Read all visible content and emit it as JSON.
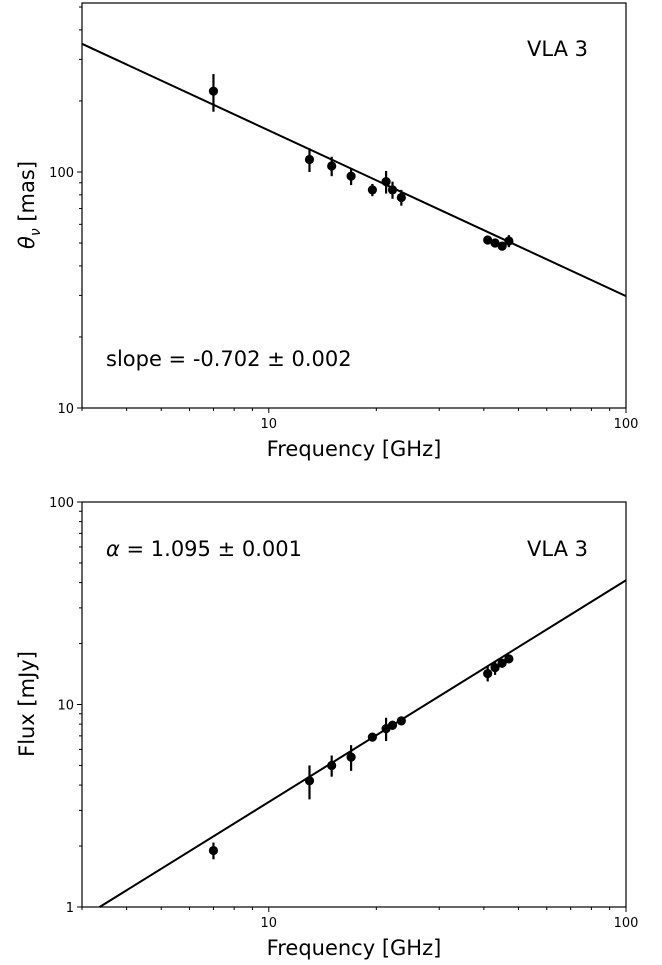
{
  "chart_data": [
    {
      "type": "scatter",
      "xlabel": "Frequency [GHz]",
      "ylabel_symbol": "θ",
      "ylabel_sub": "ν",
      "ylabel_rest": " [mas]",
      "xscale": "log",
      "yscale": "log",
      "xlim": [
        3,
        100
      ],
      "ylim": [
        10,
        520
      ],
      "xticks": [
        {
          "value": 10,
          "label": "10"
        },
        {
          "value": 100,
          "label": "100"
        }
      ],
      "yticks": [
        {
          "value": 10,
          "label": "10"
        },
        {
          "value": 100,
          "label": "100"
        }
      ],
      "source_label": "VLA 3",
      "fit_text": "slope = -0.702 ± 0.002",
      "fit": {
        "slope": -0.702,
        "ref_x": 10,
        "ref_y": 150
      },
      "points": [
        {
          "x": 7.0,
          "y": 220,
          "err": 40
        },
        {
          "x": 13.0,
          "y": 113,
          "err": 13
        },
        {
          "x": 15.0,
          "y": 106,
          "err": 10
        },
        {
          "x": 17.0,
          "y": 96,
          "err": 8
        },
        {
          "x": 19.5,
          "y": 84,
          "err": 5
        },
        {
          "x": 21.3,
          "y": 91,
          "err": 10
        },
        {
          "x": 22.2,
          "y": 84,
          "err": 7
        },
        {
          "x": 23.5,
          "y": 78,
          "err": 6
        },
        {
          "x": 41.0,
          "y": 51.5,
          "err": 2
        },
        {
          "x": 43.0,
          "y": 50,
          "err": 2
        },
        {
          "x": 45.0,
          "y": 48.5,
          "err": 2
        },
        {
          "x": 47.0,
          "y": 51,
          "err": 3
        }
      ]
    },
    {
      "type": "scatter",
      "xlabel": "Frequency [GHz]",
      "ylabel": "Flux [mJy]",
      "xscale": "log",
      "yscale": "log",
      "xlim": [
        3,
        100
      ],
      "ylim": [
        1,
        100
      ],
      "xticks": [
        {
          "value": 10,
          "label": "10"
        },
        {
          "value": 100,
          "label": "100"
        }
      ],
      "yticks": [
        {
          "value": 1,
          "label": "1"
        },
        {
          "value": 10,
          "label": "10"
        },
        {
          "value": 100,
          "label": "100"
        }
      ],
      "source_label": "VLA 3",
      "fit_text_symbol": "α",
      "fit_text_rest": " = 1.095 ± 0.001",
      "fit": {
        "slope": 1.095,
        "ref_x": 10,
        "ref_y": 3.3
      },
      "points": [
        {
          "x": 7.0,
          "y": 1.9,
          "err": 0.18
        },
        {
          "x": 13.0,
          "y": 4.2,
          "err": 0.8
        },
        {
          "x": 15.0,
          "y": 5.0,
          "err": 0.6
        },
        {
          "x": 17.0,
          "y": 5.5,
          "err": 0.8
        },
        {
          "x": 19.5,
          "y": 6.9,
          "err": 0.3
        },
        {
          "x": 21.3,
          "y": 7.6,
          "err": 1.0
        },
        {
          "x": 22.2,
          "y": 7.9,
          "err": 0.4
        },
        {
          "x": 23.5,
          "y": 8.3,
          "err": 0.4
        },
        {
          "x": 41.0,
          "y": 14.2,
          "err": 1.2
        },
        {
          "x": 43.0,
          "y": 15.2,
          "err": 1.2
        },
        {
          "x": 45.0,
          "y": 16.0,
          "err": 0.8
        },
        {
          "x": 47.0,
          "y": 16.8,
          "err": 0.8
        }
      ]
    }
  ]
}
